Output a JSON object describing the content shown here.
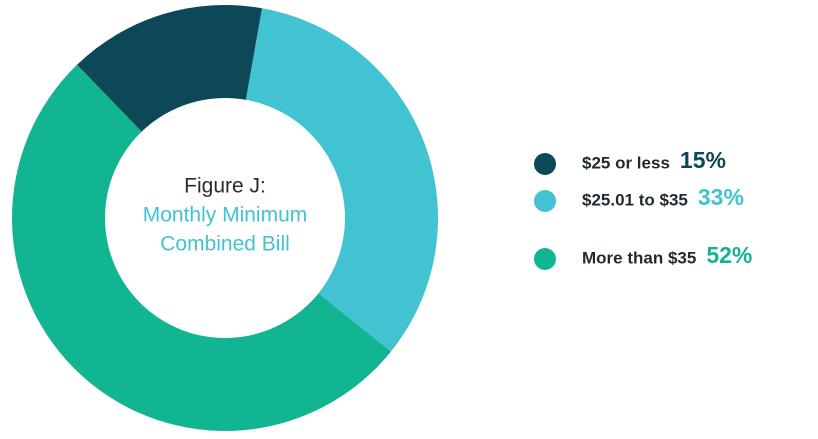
{
  "chart_data": {
    "type": "pie",
    "donut": true,
    "title": "Figure J:",
    "subtitle": [
      "Monthly Minimum",
      "Combined Bill"
    ],
    "categories": [
      "$25 or less",
      "$25.01 to $35",
      "More than $35"
    ],
    "values": [
      15,
      33,
      52
    ],
    "value_labels": [
      "15%",
      "33%",
      "52%"
    ],
    "colors": [
      "#0c4857",
      "#41c3d1",
      "#12b592"
    ],
    "legend": "right"
  }
}
